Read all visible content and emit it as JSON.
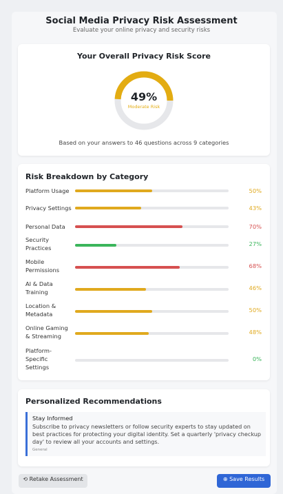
{
  "header": {
    "title": "Social Media Privacy Risk Assessment",
    "subtitle": "Evaluate your online privacy and security risks"
  },
  "score": {
    "title": "Your Overall Privacy Risk Score",
    "value": 49,
    "value_label": "49%",
    "max": 100,
    "level": "Moderate Risk",
    "color": "#e3ac12",
    "track_color": "#e6e7ea",
    "note": "Based on your answers to 46 questions across 9 categories"
  },
  "breakdown": {
    "title": "Risk Breakdown by Category",
    "max": 100,
    "categories": [
      "Platform Usage",
      "Privacy Settings",
      "Personal Data",
      "Security Practices",
      "Mobile Permissions",
      "AI & Data Training",
      "Location & Metadata",
      "Online Gaming & Streaming",
      "Platform-Specific Settings"
    ],
    "values": [
      50,
      43,
      70,
      27,
      68,
      46,
      50,
      48,
      0
    ],
    "value_labels": [
      "50%",
      "43%",
      "70%",
      "27%",
      "68%",
      "46%",
      "50%",
      "48%",
      "0%"
    ],
    "colors": [
      "#e0a91e",
      "#e0a91e",
      "#d65050",
      "#3bb55b",
      "#d65050",
      "#e0a91e",
      "#e0a91e",
      "#e0a91e",
      "#3bb55b"
    ]
  },
  "recommendations": {
    "title": "Personalized Recommendations",
    "items": [
      {
        "title": "Stay Informed",
        "text": "Subscribe to privacy newsletters or follow security experts to stay updated on best practices for protecting your digital identity. Set a quarterly 'privacy checkup day' to review all your accounts and settings.",
        "tag": "General"
      }
    ]
  },
  "buttons": {
    "retake": "⟲ Retake Assessment",
    "save": "⊕ Save Results"
  }
}
